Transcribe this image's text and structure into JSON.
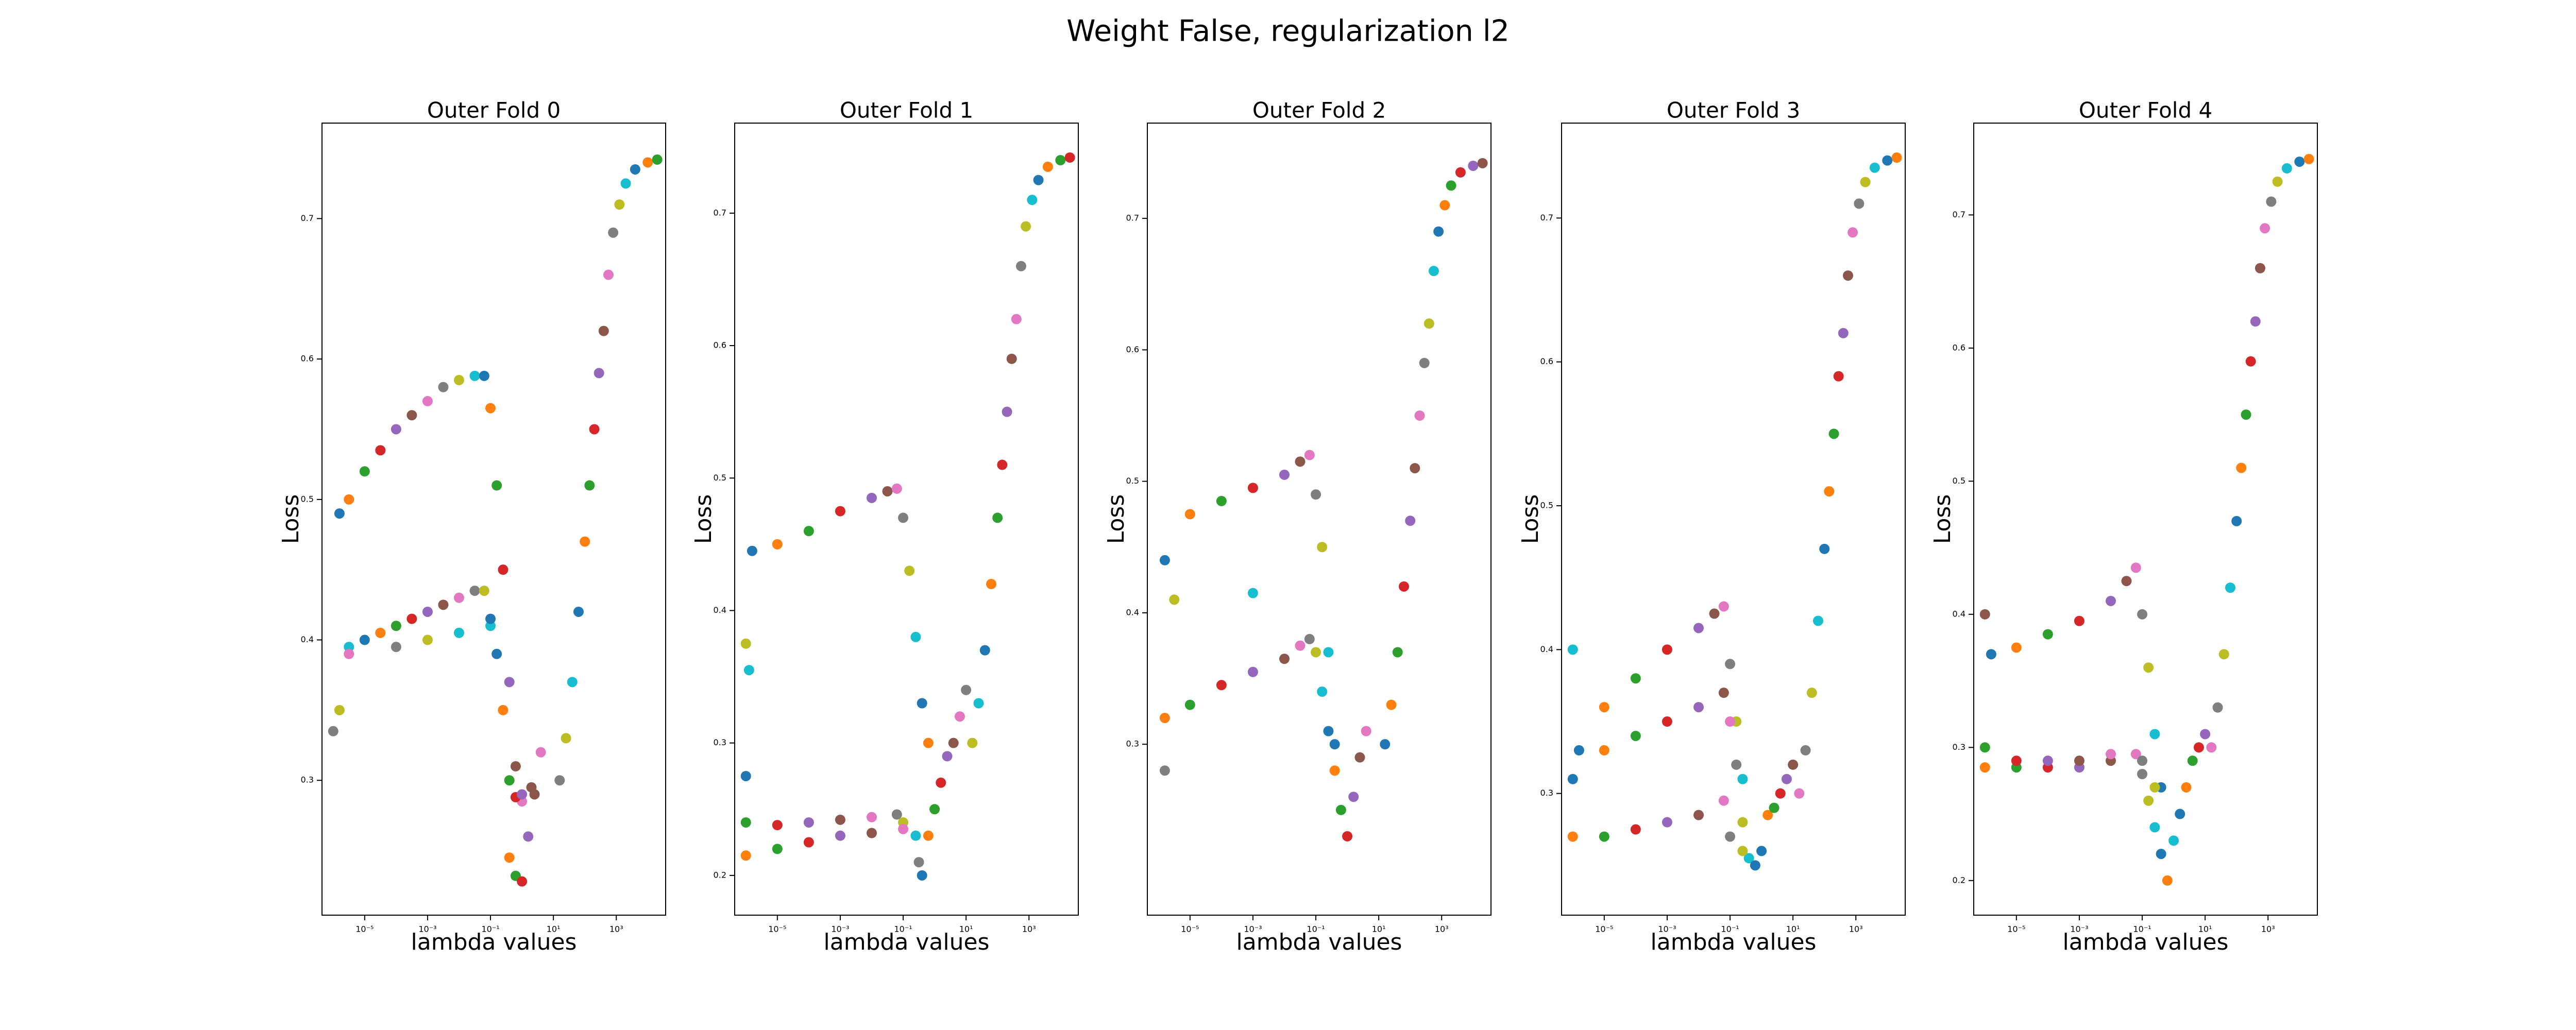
{
  "title": "Weight False, regularization l2",
  "chart_data": [
    {
      "type": "scatter",
      "title": "Outer Fold 0",
      "x_label": "lambda values",
      "y_label": "Loss",
      "log_x": true,
      "colors": [
        "#1f77b4",
        "#ff7f0e",
        "#2ca02c",
        "#d62728",
        "#9467bd",
        "#8c564b",
        "#e377c2",
        "#7f7f7f",
        "#bcbd22",
        "#17becf"
      ],
      "xlim": [
        4.4e-07,
        37000
      ],
      "ylim": [
        0.204,
        0.768
      ],
      "xticks": [
        {
          "value": 1e-05,
          "label": "10⁻⁵"
        },
        {
          "value": 0.001,
          "label": "10⁻³"
        },
        {
          "value": 0.1,
          "label": "10⁻¹"
        },
        {
          "value": 10,
          "label": "10¹"
        },
        {
          "value": 1000,
          "label": "10³"
        }
      ],
      "yticks": [
        0.3,
        0.4,
        0.5,
        0.6,
        0.7
      ],
      "x": [
        1.58e-06,
        3.16e-06,
        1e-05,
        3.16e-05,
        0.0001,
        0.000316,
        0.001,
        0.00316,
        0.01,
        0.0316,
        0.0631,
        0.1,
        0.158,
        0.251,
        0.398,
        0.631,
        1,
        1e-06,
        1.58e-06,
        3.16e-06,
        1e-05,
        3.16e-05,
        0.0001,
        0.000316,
        0.001,
        0.00316,
        0.01,
        0.0316,
        0.0631,
        0.1,
        0.158,
        0.251,
        0.398,
        0.631,
        1,
        2,
        3.16e-06,
        0.0001,
        0.001,
        0.01,
        0.1,
        0.398,
        0.631,
        1,
        1.58,
        2.51,
        3.98,
        15.8,
        25.1,
        39.8,
        63.1,
        100,
        141,
        200,
        282,
        398,
        562,
        794,
        1259,
        1995,
        3981,
        10000,
        19953
      ],
      "y": [
        0.49,
        0.5,
        0.52,
        0.535,
        0.55,
        0.56,
        0.57,
        0.58,
        0.585,
        0.588,
        0.588,
        0.565,
        0.51,
        0.45,
        0.37,
        0.31,
        0.285,
        0.335,
        0.35,
        0.395,
        0.4,
        0.405,
        0.41,
        0.415,
        0.42,
        0.425,
        0.43,
        0.435,
        0.435,
        0.41,
        0.39,
        0.35,
        0.3,
        0.288,
        0.29,
        0.295,
        0.39,
        0.395,
        0.4,
        0.405,
        0.415,
        0.245,
        0.232,
        0.228,
        0.26,
        0.29,
        0.32,
        0.3,
        0.33,
        0.37,
        0.42,
        0.47,
        0.51,
        0.55,
        0.59,
        0.62,
        0.66,
        0.69,
        0.71,
        0.725,
        0.735,
        0.74,
        0.742
      ]
    },
    {
      "type": "scatter",
      "title": "Outer Fold 1",
      "x_label": "lambda values",
      "y_label": "Loss",
      "log_x": true,
      "colors": [
        "#1f77b4",
        "#ff7f0e",
        "#2ca02c",
        "#d62728",
        "#9467bd",
        "#8c564b",
        "#e377c2",
        "#7f7f7f",
        "#bcbd22",
        "#17becf"
      ],
      "xlim": [
        4.4e-07,
        37000
      ],
      "ylim": [
        0.17,
        0.768
      ],
      "xticks": [
        {
          "value": 1e-05,
          "label": "10⁻⁵"
        },
        {
          "value": 0.001,
          "label": "10⁻³"
        },
        {
          "value": 0.1,
          "label": "10⁻¹"
        },
        {
          "value": 10,
          "label": "10¹"
        },
        {
          "value": 1000,
          "label": "10³"
        }
      ],
      "yticks": [
        0.2,
        0.3,
        0.4,
        0.5,
        0.6,
        0.7
      ],
      "x": [
        1.58e-06,
        1e-05,
        0.0001,
        0.001,
        0.01,
        0.0316,
        0.0631,
        0.1,
        0.158,
        0.251,
        0.398,
        0.631,
        1e-06,
        1e-05,
        0.0001,
        0.001,
        0.01,
        0.0631,
        0.1,
        0.251,
        0.398,
        1e-06,
        1e-05,
        0.0001,
        0.001,
        0.01,
        0.1,
        0.316,
        1e-06,
        1.26e-06,
        1e-06,
        0.631,
        1,
        1.58,
        2.51,
        3.98,
        6.31,
        10,
        15.8,
        25.1,
        39.8,
        63.1,
        100,
        141,
        200,
        282,
        398,
        562,
        794,
        1259,
        1995,
        3981,
        10000,
        19953
      ],
      "y": [
        0.445,
        0.45,
        0.46,
        0.475,
        0.485,
        0.49,
        0.492,
        0.47,
        0.43,
        0.38,
        0.33,
        0.3,
        0.24,
        0.238,
        0.24,
        0.242,
        0.244,
        0.246,
        0.24,
        0.23,
        0.2,
        0.215,
        0.22,
        0.225,
        0.23,
        0.232,
        0.235,
        0.21,
        0.375,
        0.355,
        0.275,
        0.23,
        0.25,
        0.27,
        0.29,
        0.3,
        0.32,
        0.34,
        0.3,
        0.33,
        0.37,
        0.42,
        0.47,
        0.51,
        0.55,
        0.59,
        0.62,
        0.66,
        0.69,
        0.71,
        0.725,
        0.735,
        0.74,
        0.742
      ]
    },
    {
      "type": "scatter",
      "title": "Outer Fold 2",
      "x_label": "lambda values",
      "y_label": "Loss",
      "log_x": true,
      "colors": [
        "#1f77b4",
        "#ff7f0e",
        "#2ca02c",
        "#d62728",
        "#9467bd",
        "#8c564b",
        "#e377c2",
        "#7f7f7f",
        "#bcbd22",
        "#17becf"
      ],
      "xlim": [
        4.4e-07,
        37000
      ],
      "ylim": [
        0.17,
        0.7725
      ],
      "xticks": [
        {
          "value": 1e-05,
          "label": "10⁻⁵"
        },
        {
          "value": 0.001,
          "label": "10⁻³"
        },
        {
          "value": 0.1,
          "label": "10⁻¹"
        },
        {
          "value": 10,
          "label": "10¹"
        },
        {
          "value": 1000,
          "label": "10³"
        }
      ],
      "yticks": [
        0.3,
        0.4,
        0.5,
        0.6,
        0.7
      ],
      "x": [
        1.58e-06,
        1e-05,
        0.0001,
        0.001,
        0.01,
        0.0316,
        0.0631,
        0.1,
        0.158,
        0.251,
        0.398,
        1.58e-06,
        1e-05,
        0.0001,
        0.001,
        0.01,
        0.0316,
        0.0631,
        0.1,
        0.158,
        0.251,
        0.398,
        0.631,
        1,
        1.58,
        2.51,
        3.98,
        1.58e-06,
        3.16e-06,
        0.001,
        15.8,
        25.1,
        39.8,
        63.1,
        100,
        141,
        200,
        282,
        398,
        562,
        794,
        1259,
        1995,
        3981,
        10000,
        19953
      ],
      "y": [
        0.44,
        0.475,
        0.485,
        0.495,
        0.505,
        0.515,
        0.52,
        0.49,
        0.45,
        0.37,
        0.3,
        0.32,
        0.33,
        0.345,
        0.355,
        0.365,
        0.375,
        0.38,
        0.37,
        0.34,
        0.31,
        0.28,
        0.25,
        0.23,
        0.26,
        0.29,
        0.31,
        0.28,
        0.41,
        0.415,
        0.3,
        0.33,
        0.37,
        0.42,
        0.47,
        0.51,
        0.55,
        0.59,
        0.62,
        0.66,
        0.69,
        0.71,
        0.725,
        0.735,
        0.74,
        0.742
      ]
    },
    {
      "type": "scatter",
      "title": "Outer Fold 3",
      "x_label": "lambda values",
      "y_label": "Loss",
      "log_x": true,
      "colors": [
        "#1f77b4",
        "#ff7f0e",
        "#2ca02c",
        "#d62728",
        "#9467bd",
        "#8c564b",
        "#e377c2",
        "#7f7f7f",
        "#bcbd22",
        "#17becf"
      ],
      "xlim": [
        4.4e-07,
        37000
      ],
      "ylim": [
        0.2154,
        0.766
      ],
      "xticks": [
        {
          "value": 1e-05,
          "label": "10⁻⁵"
        },
        {
          "value": 0.001,
          "label": "10⁻³"
        },
        {
          "value": 0.1,
          "label": "10⁻¹"
        },
        {
          "value": 10,
          "label": "10¹"
        },
        {
          "value": 1000,
          "label": "10³"
        }
      ],
      "yticks": [
        0.3,
        0.4,
        0.5,
        0.6,
        0.7
      ],
      "x": [
        1.58e-06,
        1e-05,
        0.0001,
        0.001,
        0.01,
        0.0316,
        0.0631,
        0.1,
        0.158,
        0.251,
        1e-06,
        1e-05,
        0.0001,
        0.001,
        0.01,
        0.0631,
        0.1,
        0.158,
        0.251,
        0.398,
        0.631,
        1e-06,
        1e-05,
        0.0001,
        0.001,
        0.01,
        0.0631,
        0.1,
        0.251,
        1e-06,
        1,
        1.58,
        2.51,
        3.98,
        6.31,
        10,
        15.8,
        25.1,
        39.8,
        63.1,
        100,
        141,
        200,
        282,
        398,
        562,
        794,
        1259,
        1995,
        3981,
        10000,
        19953
      ],
      "y": [
        0.33,
        0.36,
        0.38,
        0.4,
        0.415,
        0.425,
        0.43,
        0.39,
        0.35,
        0.31,
        0.31,
        0.33,
        0.34,
        0.35,
        0.36,
        0.37,
        0.35,
        0.32,
        0.28,
        0.255,
        0.25,
        0.27,
        0.27,
        0.275,
        0.28,
        0.285,
        0.295,
        0.27,
        0.26,
        0.4,
        0.26,
        0.285,
        0.29,
        0.3,
        0.31,
        0.32,
        0.3,
        0.33,
        0.37,
        0.42,
        0.47,
        0.51,
        0.55,
        0.59,
        0.62,
        0.66,
        0.69,
        0.71,
        0.725,
        0.735,
        0.74,
        0.742
      ]
    },
    {
      "type": "scatter",
      "title": "Outer Fold 4",
      "x_label": "lambda values",
      "y_label": "Loss",
      "log_x": true,
      "colors": [
        "#1f77b4",
        "#ff7f0e",
        "#2ca02c",
        "#d62728",
        "#9467bd",
        "#8c564b",
        "#e377c2",
        "#7f7f7f",
        "#bcbd22",
        "#17becf"
      ],
      "xlim": [
        4.4e-07,
        37000
      ],
      "ylim": [
        0.174,
        0.769
      ],
      "xticks": [
        {
          "value": 1e-05,
          "label": "10⁻⁵"
        },
        {
          "value": 0.001,
          "label": "10⁻³"
        },
        {
          "value": 0.1,
          "label": "10⁻¹"
        },
        {
          "value": 10,
          "label": "10¹"
        },
        {
          "value": 1000,
          "label": "10³"
        }
      ],
      "yticks": [
        0.2,
        0.3,
        0.4,
        0.5,
        0.6,
        0.7
      ],
      "x": [
        1.58e-06,
        1e-05,
        0.0001,
        0.001,
        0.01,
        0.0316,
        0.0631,
        0.1,
        0.158,
        0.251,
        0.398,
        1e-06,
        1e-05,
        0.0001,
        0.001,
        0.01,
        0.0631,
        0.1,
        0.158,
        0.251,
        0.398,
        0.631,
        1e-06,
        1e-05,
        0.0001,
        0.001,
        0.01,
        0.1,
        0.251,
        1,
        1.58,
        2.51,
        3.98,
        6.31,
        10,
        1e-06,
        15.8,
        25.1,
        39.8,
        63.1,
        100,
        141,
        200,
        282,
        398,
        562,
        794,
        1259,
        1995,
        3981,
        10000,
        19953
      ],
      "y": [
        0.37,
        0.375,
        0.385,
        0.395,
        0.41,
        0.425,
        0.435,
        0.4,
        0.36,
        0.31,
        0.27,
        0.285,
        0.285,
        0.285,
        0.285,
        0.29,
        0.295,
        0.28,
        0.26,
        0.24,
        0.22,
        0.2,
        0.3,
        0.29,
        0.29,
        0.29,
        0.295,
        0.29,
        0.27,
        0.23,
        0.25,
        0.27,
        0.29,
        0.3,
        0.31,
        0.4,
        0.3,
        0.33,
        0.37,
        0.42,
        0.47,
        0.51,
        0.55,
        0.59,
        0.62,
        0.66,
        0.69,
        0.71,
        0.725,
        0.735,
        0.74,
        0.742
      ]
    }
  ]
}
